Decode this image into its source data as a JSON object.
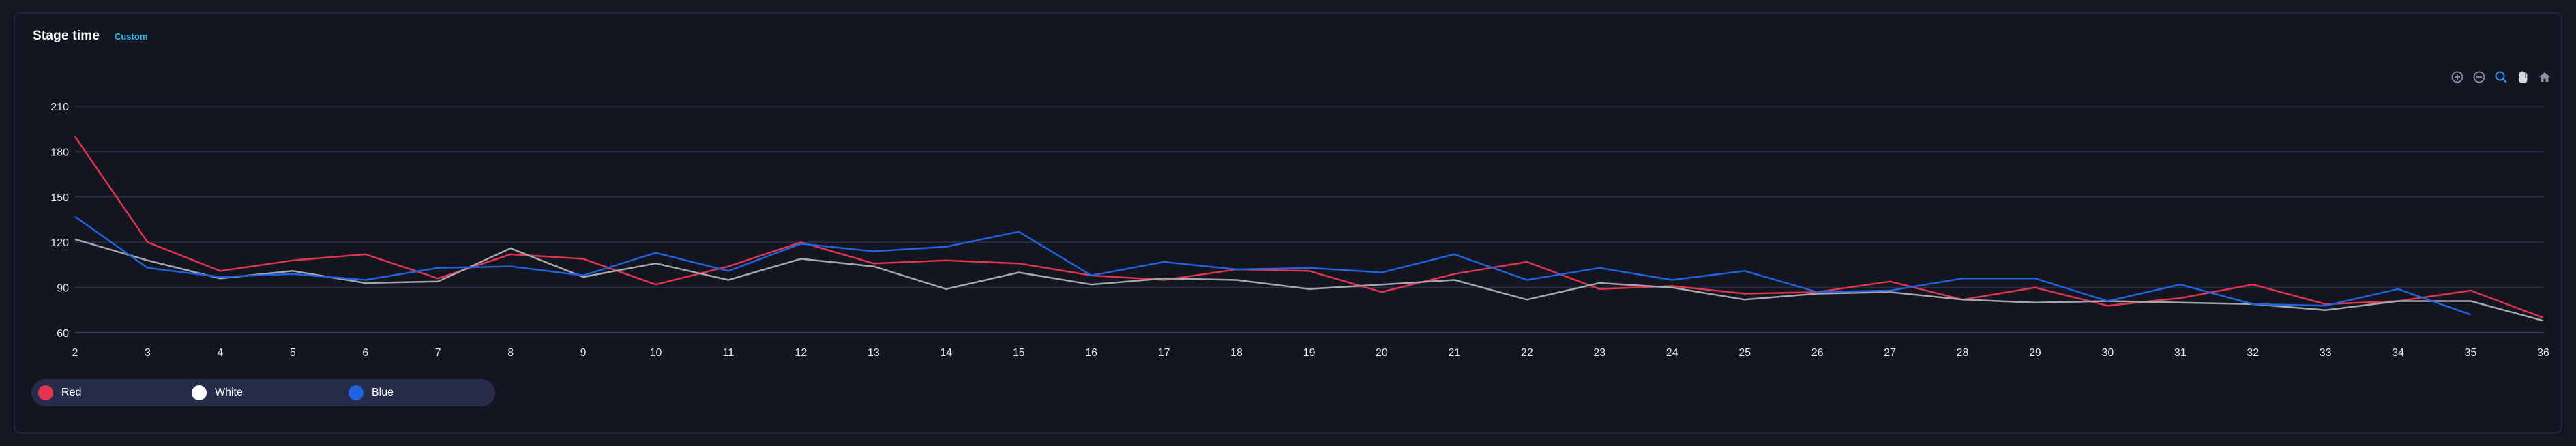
{
  "panel": {
    "title": "Stage time",
    "subtitle": "Custom"
  },
  "toolbar": {
    "items": [
      {
        "name": "zoom-in-icon"
      },
      {
        "name": "zoom-out-icon"
      },
      {
        "name": "zoom-select-icon"
      },
      {
        "name": "pan-hand-icon"
      },
      {
        "name": "reset-home-icon"
      }
    ]
  },
  "legend": {
    "items": [
      {
        "label": "Red",
        "color": "#e2344c"
      },
      {
        "label": "White",
        "color": "#ffffff"
      },
      {
        "label": "Blue",
        "color": "#1f63e0"
      }
    ]
  },
  "chart_data": {
    "type": "line",
    "title": "Stage time",
    "subtitle": "Custom",
    "x": [
      2,
      3,
      4,
      5,
      6,
      7,
      8,
      9,
      10,
      11,
      12,
      13,
      14,
      15,
      16,
      17,
      18,
      19,
      20,
      21,
      22,
      23,
      24,
      25,
      26,
      27,
      28,
      29,
      30,
      31,
      32,
      33,
      34,
      35,
      36
    ],
    "ylim": [
      60,
      210
    ],
    "yticks": [
      60,
      90,
      120,
      150,
      180,
      210
    ],
    "grid": true,
    "legend_position": "bottom-left",
    "series": [
      {
        "name": "Red",
        "color": "#e2344c",
        "values": [
          190,
          120,
          101,
          108,
          112,
          96,
          112,
          109,
          92,
          104,
          120,
          106,
          108,
          106,
          98,
          95,
          102,
          101,
          87,
          99,
          107,
          89,
          91,
          86,
          87,
          94,
          82,
          90,
          78,
          83,
          92,
          79,
          81,
          88,
          70
        ]
      },
      {
        "name": "White",
        "color": "#a6a6ad",
        "values": [
          122,
          108,
          96,
          101,
          93,
          94,
          116,
          97,
          106,
          95,
          109,
          104,
          89,
          100,
          92,
          96,
          95,
          89,
          92,
          95,
          82,
          93,
          90,
          82,
          86,
          87,
          82,
          80,
          81,
          80,
          79,
          75,
          81,
          81,
          68
        ]
      },
      {
        "name": "Blue",
        "color": "#1f63e0",
        "values": [
          137,
          103,
          97,
          99,
          95,
          103,
          104,
          98,
          113,
          101,
          119,
          114,
          117,
          127,
          98,
          107,
          102,
          103,
          100,
          112,
          95,
          103,
          95,
          101,
          87,
          88,
          96,
          96,
          81,
          92,
          79,
          78,
          89,
          72,
          null
        ]
      }
    ]
  }
}
